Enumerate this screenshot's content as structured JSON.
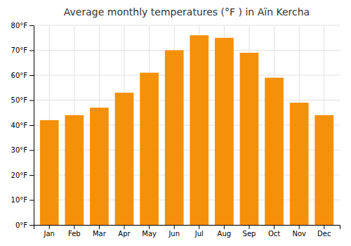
{
  "chart_data": {
    "type": "bar",
    "title": "Average monthly temperatures (°F ) in Aïn Kercha",
    "categories": [
      "Jan",
      "Feb",
      "Mar",
      "Apr",
      "May",
      "Jun",
      "Jul",
      "Aug",
      "Sep",
      "Oct",
      "Nov",
      "Dec"
    ],
    "values": [
      42,
      44,
      47,
      53,
      61,
      70,
      76,
      75,
      69,
      59,
      49,
      44
    ],
    "color": "#F5900A",
    "ylim": [
      0,
      80
    ],
    "yticks": [
      {
        "value": 0,
        "label": "0°F"
      },
      {
        "value": 10,
        "label": "10°F"
      },
      {
        "value": 20,
        "label": "20°F"
      },
      {
        "value": 30,
        "label": "30°F"
      },
      {
        "value": 40,
        "label": "40°F"
      },
      {
        "value": 50,
        "label": "50°F"
      },
      {
        "value": 60,
        "label": "60°F"
      },
      {
        "value": 70,
        "label": "70°F"
      },
      {
        "value": 80,
        "label": "80°F"
      }
    ],
    "grid": true
  }
}
